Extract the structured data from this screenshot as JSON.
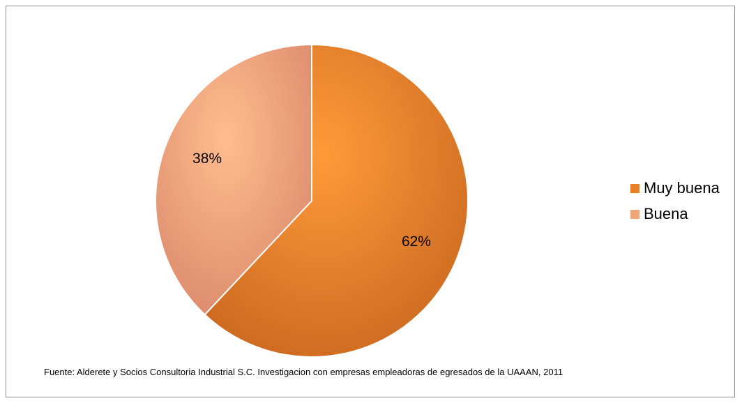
{
  "chart_data": {
    "type": "pie",
    "categories": [
      "Muy buena",
      "Buena"
    ],
    "values": [
      62,
      38
    ],
    "value_labels": [
      "62%",
      "38%"
    ],
    "colors": [
      "#e8802a",
      "#f2a47a"
    ],
    "start": "12 o'clock, clockwise",
    "legend_position": "right"
  },
  "source_note": "Fuente: Alderete y Socios Consultoria Industrial S.C. Investigacion con empresas empleadoras de  egresados de la UAAAN, 2011"
}
